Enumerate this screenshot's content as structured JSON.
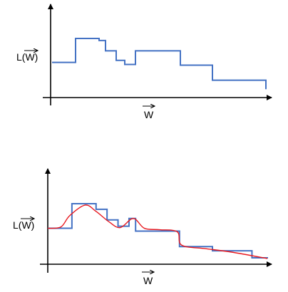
{
  "chart_data": [
    {
      "type": "line",
      "subtype": "step",
      "xlabel": "W",
      "ylabel": "L(W)",
      "xlabel_vector_arrow": true,
      "ylabel_vector_arrow": true,
      "series": [
        {
          "style": "step",
          "color": "#4472c4",
          "x": [
            0,
            11,
            22,
            25,
            30,
            34,
            39,
            60,
            75,
            100
          ],
          "values": [
            44,
            79,
            76,
            61,
            47,
            41,
            61,
            40,
            18,
            5
          ]
        }
      ]
    },
    {
      "type": "line",
      "subtype": "step-with-smooth-fit",
      "xlabel": "W",
      "ylabel": "L(W)",
      "xlabel_vector_arrow": true,
      "ylabel_vector_arrow": true,
      "series": [
        {
          "style": "step",
          "color": "#4472c4",
          "x": [
            0,
            11,
            22,
            27,
            32,
            37,
            40,
            49,
            60,
            75,
            93,
            100
          ],
          "values": [
            44,
            79,
            71,
            56,
            47,
            58,
            40,
            40,
            18,
            12,
            2,
            1
          ]
        },
        {
          "style": "smooth",
          "color": "#e8191f",
          "x": [
            0,
            6,
            10,
            17,
            22,
            28,
            33,
            39,
            44,
            51,
            59,
            61,
            72,
            84,
            100
          ],
          "values": [
            44,
            46,
            62,
            77,
            68,
            53,
            45,
            58,
            44,
            42,
            39,
            20,
            15,
            10,
            1
          ]
        }
      ]
    }
  ]
}
